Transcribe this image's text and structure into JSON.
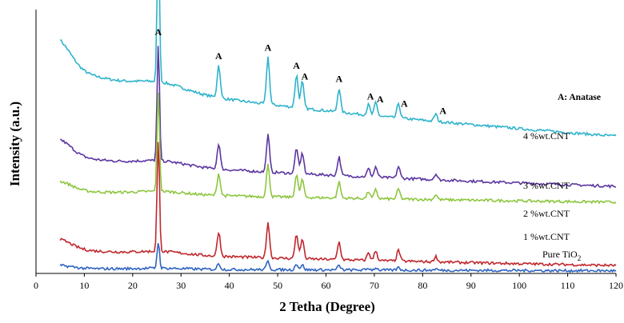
{
  "chart_data": {
    "type": "line",
    "title": "",
    "xlabel": "2 Tetha (Degree)",
    "ylabel": "Intensity (a.u.)",
    "xlim": [
      0,
      120
    ],
    "ylim": [
      0,
      100
    ],
    "xticks": [
      "0",
      "10",
      "20",
      "30",
      "40",
      "50",
      "60",
      "70",
      "80",
      "90",
      "100",
      "110",
      "120"
    ],
    "grid": false,
    "phase_note": "A: Anatase",
    "peak_letter": "A",
    "peaks": [
      {
        "x": 25.3,
        "h": 1.0
      },
      {
        "x": 37.8,
        "h": 0.22
      },
      {
        "x": 48.0,
        "h": 0.32
      },
      {
        "x": 53.9,
        "h": 0.22
      },
      {
        "x": 55.1,
        "h": 0.18
      },
      {
        "x": 62.7,
        "h": 0.16
      },
      {
        "x": 68.8,
        "h": 0.07
      },
      {
        "x": 70.3,
        "h": 0.09
      },
      {
        "x": 75.0,
        "h": 0.1
      },
      {
        "x": 82.7,
        "h": 0.05
      }
    ],
    "peak_annotations": [
      25.3,
      37.8,
      48.0,
      53.9,
      55.6,
      62.7,
      69.2,
      71.2,
      76.2,
      84.2
    ],
    "series": [
      {
        "name": "4 %wt.CNT",
        "color": "#2db3cc",
        "base_start": 81,
        "base_end": 52,
        "peak_scale": 56,
        "hump": 8
      },
      {
        "name": "3 %wt.CNT",
        "color": "#5b35a0",
        "base_start": 46,
        "base_end": 33,
        "peak_scale": 44,
        "hump": 5
      },
      {
        "name": "2 %wt.CNT",
        "color": "#8dc63f",
        "base_start": 32,
        "base_end": 27,
        "peak_scale": 38,
        "hump": 3
      },
      {
        "name": "1 %wt.CNT",
        "color": "#c0272d",
        "base_start": 10,
        "base_end": 3,
        "peak_scale": 42,
        "hump": 3
      },
      {
        "name": "Pure TiO2",
        "color": "#2e63c0",
        "base_start": 2,
        "base_end": 1,
        "peak_scale": 10,
        "hump": 1
      }
    ],
    "series_labels": [
      {
        "text": "4 %wt.CNT"
      },
      {
        "text": "3 %wt.CNT"
      },
      {
        "text": "2 %wt.CNT"
      },
      {
        "text": "1 %wt.CNT"
      },
      {
        "text_main": "Pure TiO",
        "text_sub": "2"
      }
    ]
  }
}
